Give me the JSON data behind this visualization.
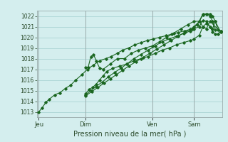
{
  "background_color": "#d4eeee",
  "grid_color": "#b0d8d8",
  "line_color": "#1a6620",
  "title": "Pression niveau de la mer( hPa )",
  "ylim": [
    1012.5,
    1022.5
  ],
  "yticks": [
    1013,
    1014,
    1015,
    1016,
    1017,
    1018,
    1019,
    1020,
    1021,
    1022
  ],
  "day_labels": [
    "Jeu",
    "Dim",
    "Ven",
    "Sam"
  ],
  "day_positions": [
    0.0,
    0.265,
    0.645,
    0.88
  ],
  "vline_color": "#9aabab",
  "series": [
    [
      [
        0.0,
        1013.0
      ],
      [
        0.02,
        1013.4
      ],
      [
        0.04,
        1013.9
      ],
      [
        0.06,
        1014.2
      ],
      [
        0.09,
        1014.6
      ],
      [
        0.12,
        1014.8
      ],
      [
        0.15,
        1015.2
      ],
      [
        0.18,
        1015.5
      ],
      [
        0.21,
        1016.0
      ],
      [
        0.245,
        1016.5
      ],
      [
        0.275,
        1017.0
      ],
      [
        0.31,
        1017.4
      ],
      [
        0.345,
        1017.8
      ],
      [
        0.38,
        1018.0
      ],
      [
        0.41,
        1018.2
      ],
      [
        0.445,
        1018.5
      ],
      [
        0.475,
        1018.8
      ],
      [
        0.51,
        1019.0
      ],
      [
        0.545,
        1019.3
      ],
      [
        0.58,
        1019.5
      ],
      [
        0.615,
        1019.7
      ],
      [
        0.65,
        1019.85
      ],
      [
        0.685,
        1020.0
      ],
      [
        0.72,
        1020.15
      ],
      [
        0.755,
        1020.3
      ],
      [
        0.79,
        1020.45
      ],
      [
        0.825,
        1020.6
      ],
      [
        0.86,
        1020.75
      ],
      [
        0.88,
        1021.0
      ],
      [
        0.91,
        1021.5
      ],
      [
        0.93,
        1022.1
      ],
      [
        0.95,
        1022.2
      ],
      [
        0.97,
        1022.2
      ],
      [
        0.985,
        1022.0
      ],
      [
        1.0,
        1021.5
      ],
      [
        1.015,
        1020.7
      ],
      [
        1.03,
        1020.6
      ]
    ],
    [
      [
        0.265,
        1014.7
      ],
      [
        0.285,
        1015.1
      ],
      [
        0.305,
        1015.3
      ],
      [
        0.325,
        1015.6
      ],
      [
        0.345,
        1016.0
      ],
      [
        0.365,
        1016.4
      ],
      [
        0.385,
        1016.8
      ],
      [
        0.42,
        1017.1
      ],
      [
        0.46,
        1017.3
      ],
      [
        0.5,
        1017.5
      ],
      [
        0.54,
        1017.8
      ],
      [
        0.58,
        1018.0
      ],
      [
        0.62,
        1018.2
      ],
      [
        0.66,
        1018.5
      ],
      [
        0.7,
        1018.8
      ],
      [
        0.74,
        1019.0
      ],
      [
        0.78,
        1019.3
      ],
      [
        0.82,
        1019.5
      ],
      [
        0.86,
        1019.7
      ],
      [
        0.88,
        1019.85
      ],
      [
        0.91,
        1020.2
      ],
      [
        0.93,
        1021.0
      ],
      [
        0.95,
        1021.3
      ],
      [
        0.97,
        1021.0
      ],
      [
        0.985,
        1020.5
      ],
      [
        1.0,
        1020.3
      ],
      [
        1.015,
        1020.3
      ],
      [
        1.03,
        1020.6
      ]
    ],
    [
      [
        0.265,
        1014.6
      ],
      [
        0.295,
        1015.0
      ],
      [
        0.325,
        1015.4
      ],
      [
        0.36,
        1015.8
      ],
      [
        0.395,
        1016.3
      ],
      [
        0.43,
        1016.7
      ],
      [
        0.465,
        1017.1
      ],
      [
        0.5,
        1017.5
      ],
      [
        0.54,
        1018.0
      ],
      [
        0.58,
        1018.4
      ],
      [
        0.62,
        1018.8
      ],
      [
        0.66,
        1019.2
      ],
      [
        0.7,
        1019.6
      ],
      [
        0.74,
        1019.85
      ],
      [
        0.78,
        1020.1
      ],
      [
        0.82,
        1020.35
      ],
      [
        0.86,
        1020.6
      ],
      [
        0.88,
        1020.8
      ],
      [
        0.91,
        1021.0
      ],
      [
        0.93,
        1021.6
      ],
      [
        0.95,
        1021.5
      ],
      [
        0.97,
        1021.0
      ],
      [
        0.985,
        1020.8
      ],
      [
        1.0,
        1021.5
      ],
      [
        1.03,
        1020.5
      ]
    ],
    [
      [
        0.265,
        1014.5
      ],
      [
        0.3,
        1014.9
      ],
      [
        0.335,
        1015.3
      ],
      [
        0.37,
        1015.7
      ],
      [
        0.405,
        1016.1
      ],
      [
        0.44,
        1016.5
      ],
      [
        0.475,
        1016.9
      ],
      [
        0.51,
        1017.3
      ],
      [
        0.55,
        1017.7
      ],
      [
        0.59,
        1018.1
      ],
      [
        0.63,
        1018.5
      ],
      [
        0.67,
        1018.9
      ],
      [
        0.71,
        1019.3
      ],
      [
        0.75,
        1019.7
      ],
      [
        0.79,
        1020.1
      ],
      [
        0.83,
        1020.5
      ],
      [
        0.87,
        1020.8
      ],
      [
        0.9,
        1021.2
      ],
      [
        0.93,
        1022.2
      ],
      [
        0.95,
        1022.2
      ],
      [
        0.97,
        1022.0
      ],
      [
        0.985,
        1021.5
      ],
      [
        1.0,
        1020.7
      ],
      [
        1.03,
        1020.6
      ]
    ],
    [
      [
        0.265,
        1017.2
      ],
      [
        0.28,
        1017.2
      ],
      [
        0.295,
        1018.2
      ],
      [
        0.31,
        1018.4
      ],
      [
        0.325,
        1017.8
      ],
      [
        0.345,
        1017.1
      ],
      [
        0.365,
        1017.0
      ],
      [
        0.405,
        1017.5
      ],
      [
        0.445,
        1018.0
      ],
      [
        0.485,
        1018.0
      ],
      [
        0.525,
        1018.5
      ],
      [
        0.565,
        1018.8
      ],
      [
        0.605,
        1019.0
      ],
      [
        0.645,
        1019.2
      ],
      [
        0.685,
        1019.6
      ],
      [
        0.725,
        1020.0
      ],
      [
        0.765,
        1020.4
      ],
      [
        0.805,
        1020.8
      ],
      [
        0.845,
        1021.2
      ],
      [
        0.88,
        1021.5
      ],
      [
        0.91,
        1021.5
      ],
      [
        0.93,
        1021.0
      ],
      [
        0.95,
        1020.8
      ],
      [
        0.97,
        1021.5
      ],
      [
        1.03,
        1020.5
      ]
    ]
  ]
}
